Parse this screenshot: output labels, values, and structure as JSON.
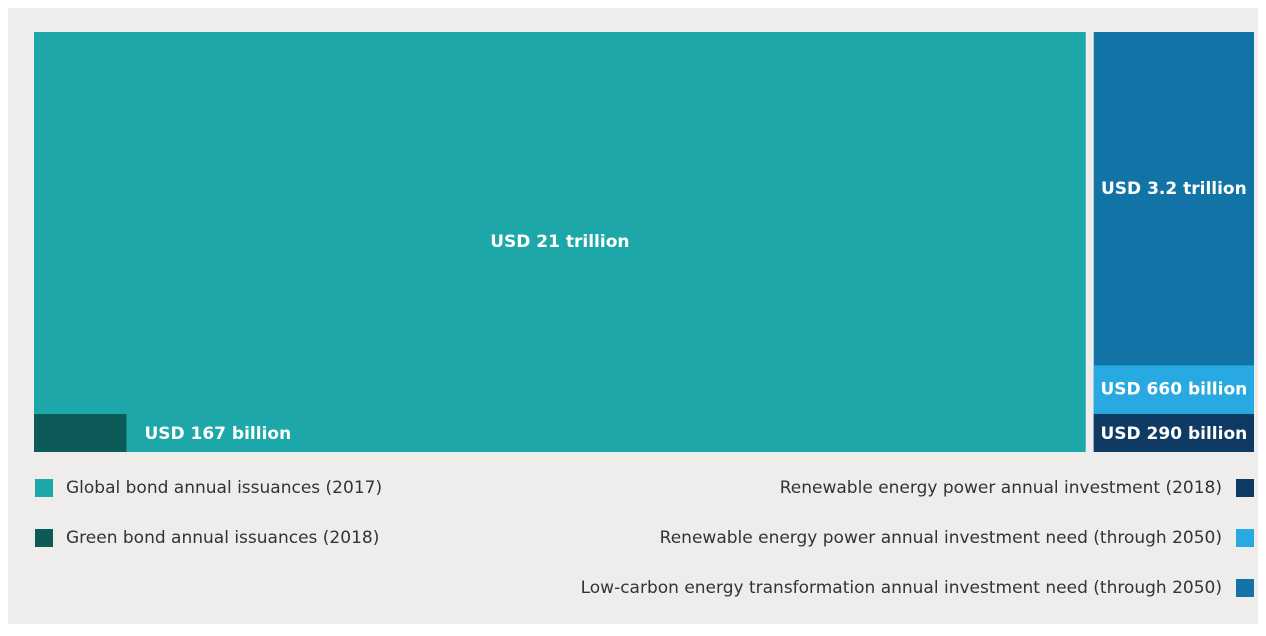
{
  "chart_data": {
    "type": "treemap",
    "categories": [
      "Global bond annual issuances (2017)",
      "Green bond annual issuances (2018)",
      "Renewable energy power annual investment (2018)",
      "Renewable energy power annual investment need (through 2050)",
      "Low-carbon energy transformation annual investment need (through 2050)"
    ],
    "values": [
      21000,
      167,
      290,
      660,
      3200
    ],
    "value_labels": [
      "USD 21 trillion",
      "USD 167 billion",
      "USD 290 billion",
      "USD 660 billion",
      "USD 3.2 trillion"
    ],
    "colors": [
      "#1ea7a8",
      "#0d5b59",
      "#0e3a63",
      "#29a9e1",
      "#1273a6"
    ]
  }
}
